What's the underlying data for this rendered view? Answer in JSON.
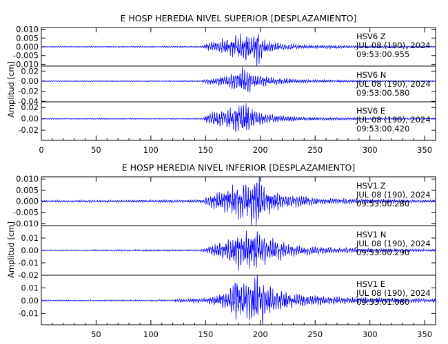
{
  "chart_data": [
    {
      "type": "line",
      "title": "E HOSP HEREDIA NIVEL SUPERIOR [DESPLAZAMIENTO]",
      "ylabel": "Amplitud [cm]",
      "xlim": [
        0,
        360
      ],
      "x_ticks": [
        "0",
        "50",
        "100",
        "150",
        "200",
        "250",
        "300",
        "350"
      ],
      "grid": false,
      "series": [
        {
          "station": "HSV6",
          "component": "Z",
          "date": "JUL 08 (190), 2024",
          "time": "09:53:00.955",
          "ylim": [
            -0.011,
            0.011
          ],
          "y_ticks": [
            "0.010",
            "0.005",
            "0.000",
            "-0.005",
            "-0.010"
          ],
          "color": "#0000ff",
          "envelope": [
            [
              0,
              0.0003
            ],
            [
              145,
              0.0004
            ],
            [
              152,
              0.002
            ],
            [
              165,
              0.004
            ],
            [
              180,
              0.006
            ],
            [
              188,
              0.008
            ],
            [
              192,
              0.005
            ],
            [
              197,
              0.011
            ],
            [
              202,
              0.004
            ],
            [
              215,
              0.002
            ],
            [
              240,
              0.001
            ],
            [
              300,
              0.0006
            ],
            [
              360,
              0.0004
            ]
          ]
        },
        {
          "station": "HSV6",
          "component": "N",
          "date": "JUL 08 (190), 2024",
          "time": "09:53:00.580",
          "ylim": [
            -0.041,
            0.03
          ],
          "y_ticks": [
            "0.02",
            "0.00",
            "-0.02",
            "-0.04"
          ],
          "color": "#0000ff",
          "envelope": [
            [
              0,
              0.0008
            ],
            [
              145,
              0.001
            ],
            [
              152,
              0.005
            ],
            [
              168,
              0.01
            ],
            [
              180,
              0.018
            ],
            [
              187,
              0.028
            ],
            [
              193,
              0.012
            ],
            [
              200,
              0.009
            ],
            [
              215,
              0.006
            ],
            [
              240,
              0.003
            ],
            [
              300,
              0.0015
            ],
            [
              360,
              0.001
            ]
          ]
        },
        {
          "station": "HSV6",
          "component": "E",
          "date": "JUL 08 (190), 2024",
          "time": "09:53:00.420",
          "ylim": [
            -0.038,
            0.03
          ],
          "y_ticks": [
            "0.02",
            "0.00",
            "-0.02"
          ],
          "color": "#0000ff",
          "envelope": [
            [
              0,
              0.0008
            ],
            [
              148,
              0.001
            ],
            [
              150,
              0.008
            ],
            [
              165,
              0.014
            ],
            [
              178,
              0.02
            ],
            [
              184,
              0.029
            ],
            [
              192,
              0.02
            ],
            [
              200,
              0.009
            ],
            [
              215,
              0.006
            ],
            [
              240,
              0.003
            ],
            [
              300,
              0.0015
            ],
            [
              360,
              0.001
            ]
          ]
        }
      ]
    },
    {
      "type": "line",
      "title": "E HOSP HEREDIA NIVEL INFERIOR [DESPLAZAMIENTO]",
      "ylabel": "Amplitud [cm]",
      "xlim": [
        0,
        360
      ],
      "x_ticks": [
        "50",
        "100",
        "150",
        "200",
        "250",
        "300",
        "350"
      ],
      "grid": false,
      "series": [
        {
          "station": "HSV1",
          "component": "Z",
          "date": "JUL 08 (190), 2024",
          "time": "09:53:00.280",
          "ylim": [
            -0.011,
            0.011
          ],
          "y_ticks": [
            "0.010",
            "0.005",
            "0.000",
            "-0.005",
            "-0.010"
          ],
          "color": "#0000ff",
          "envelope": [
            [
              0,
              0.0004
            ],
            [
              100,
              0.0005
            ],
            [
              145,
              0.0005
            ],
            [
              152,
              0.002
            ],
            [
              165,
              0.004
            ],
            [
              180,
              0.007
            ],
            [
              190,
              0.008
            ],
            [
              197,
              0.011
            ],
            [
              205,
              0.005
            ],
            [
              220,
              0.003
            ],
            [
              250,
              0.0015
            ],
            [
              300,
              0.0009
            ],
            [
              360,
              0.0005
            ]
          ]
        },
        {
          "station": "HSV1",
          "component": "N",
          "date": "JUL 08 (190), 2024",
          "time": "09:53:00.290",
          "ylim": [
            -0.02,
            0.02
          ],
          "y_ticks": [
            "0.01",
            "0.00",
            "-0.01",
            "-0.02"
          ],
          "color": "#0000ff",
          "envelope": [
            [
              0,
              0.0004
            ],
            [
              100,
              0.0006
            ],
            [
              145,
              0.0006
            ],
            [
              152,
              0.003
            ],
            [
              168,
              0.006
            ],
            [
              180,
              0.014
            ],
            [
              188,
              0.012
            ],
            [
              198,
              0.013
            ],
            [
              210,
              0.008
            ],
            [
              230,
              0.004
            ],
            [
              260,
              0.0025
            ],
            [
              300,
              0.0015
            ],
            [
              360,
              0.0008
            ]
          ]
        },
        {
          "station": "HSV1",
          "component": "E",
          "date": "JUL 08 (190), 2024",
          "time": "09:53:01.080",
          "ylim": [
            -0.019,
            0.02
          ],
          "y_ticks": [
            "0.01",
            "0.00",
            "-0.01"
          ],
          "color": "#0000ff",
          "envelope": [
            [
              0,
              0.0005
            ],
            [
              118,
              0.0006
            ],
            [
              122,
              0.0012
            ],
            [
              148,
              0.0015
            ],
            [
              155,
              0.003
            ],
            [
              170,
              0.006
            ],
            [
              178,
              0.019
            ],
            [
              185,
              0.011
            ],
            [
              198,
              0.02
            ],
            [
              210,
              0.009
            ],
            [
              230,
              0.005
            ],
            [
              260,
              0.003
            ],
            [
              300,
              0.002
            ],
            [
              360,
              0.0012
            ]
          ]
        }
      ]
    }
  ]
}
